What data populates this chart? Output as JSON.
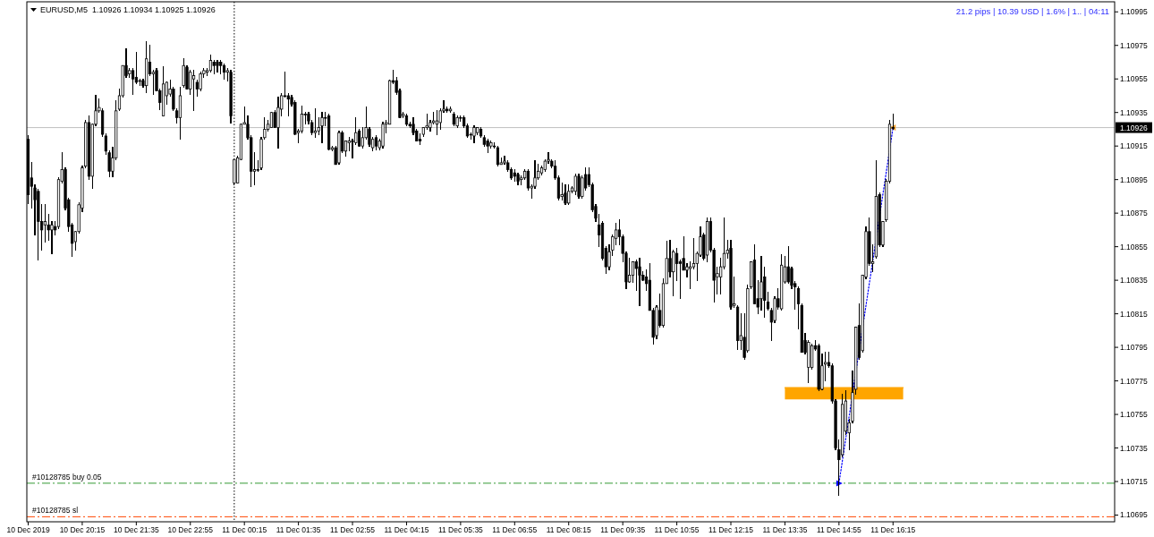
{
  "chart_data": {
    "type": "candlestick",
    "title": "EURUSD,M5  1.10926 1.10934 1.10925 1.10926",
    "annotations": [
      "21.2 pips | 10.39 USD | 1.6% | 1.. | 04:11"
    ],
    "xlim": [
      "2019-12-10T18:53",
      "2019-12-11T21:43"
    ],
    "xticks": [
      {
        "value": "2019-12-10T18:55",
        "label": "10 Dec 2019"
      },
      {
        "value": "2019-12-10T20:15",
        "label": "10 Dec 20:15"
      },
      {
        "value": "2019-12-10T21:35",
        "label": "10 Dec 21:35"
      },
      {
        "value": "2019-12-10T22:55",
        "label": "10 Dec 22:55"
      },
      {
        "value": "2019-12-11T00:15",
        "label": "11 Dec 00:15"
      },
      {
        "value": "2019-12-11T01:35",
        "label": "11 Dec 01:35"
      },
      {
        "value": "2019-12-11T02:55",
        "label": "11 Dec 02:55"
      },
      {
        "value": "2019-12-11T04:15",
        "label": "11 Dec 04:15"
      },
      {
        "value": "2019-12-11T05:35",
        "label": "11 Dec 05:35"
      },
      {
        "value": "2019-12-11T06:55",
        "label": "11 Dec 06:55"
      },
      {
        "value": "2019-12-11T08:15",
        "label": "11 Dec 08:15"
      },
      {
        "value": "2019-12-11T09:35",
        "label": "11 Dec 09:35"
      },
      {
        "value": "2019-12-11T10:55",
        "label": "11 Dec 10:55"
      },
      {
        "value": "2019-12-11T12:15",
        "label": "11 Dec 12:15"
      },
      {
        "value": "2019-12-11T13:35",
        "label": "11 Dec 13:35"
      },
      {
        "value": "2019-12-11T14:55",
        "label": "11 Dec 14:55"
      },
      {
        "value": "2019-12-11T16:15",
        "label": "11 Dec 16:15"
      }
    ],
    "ylim": [
      1.10691,
      1.11001
    ],
    "yticks": [
      1.10695,
      1.10715,
      1.10735,
      1.10755,
      1.10775,
      1.10795,
      1.10815,
      1.10835,
      1.10855,
      1.10875,
      1.10895,
      1.10915,
      1.10935,
      1.10955,
      1.10975,
      1.10995
    ],
    "ref_lines": [
      {
        "axis": "x",
        "value": "2019-12-11T00:00",
        "color": "#000000",
        "line_style": "dotted"
      },
      {
        "axis": "y",
        "value": 1.10926,
        "label": "1.10926",
        "color": "#c0c0c0",
        "line_style": "solid"
      },
      {
        "axis": "y",
        "value": 1.10714,
        "label": "#10128785 buy 0.05",
        "color": "#339933",
        "line_style": "dashed"
      },
      {
        "axis": "y",
        "value": 1.10694,
        "label": "#10128785 sl",
        "color": "#ff4500",
        "line_style": "dashed"
      }
    ],
    "series": [
      {
        "type": "line",
        "color": "#ffa500",
        "x": [
          "2019-12-11T13:35",
          "2019-12-11T16:30"
        ],
        "values": [
          1.10771,
          1.10771
        ],
        "lower": [
          1.10764,
          1.10764
        ],
        "upper": [
          1.10771,
          1.10771
        ]
      },
      {
        "color": "#000000",
        "x": [
          "2019-12-10T18:55",
          "2019-12-10T19:00",
          "2019-12-10T19:05",
          "2019-12-10T19:10",
          "2019-12-10T19:15",
          "2019-12-10T19:20",
          "2019-12-10T19:25",
          "2019-12-10T19:30",
          "2019-12-10T19:35",
          "2019-12-10T19:40",
          "2019-12-10T19:45",
          "2019-12-10T19:50",
          "2019-12-10T19:55",
          "2019-12-10T20:00",
          "2019-12-10T20:05",
          "2019-12-10T20:10",
          "2019-12-10T20:15",
          "2019-12-10T20:20",
          "2019-12-10T20:25",
          "2019-12-10T20:30",
          "2019-12-10T20:35",
          "2019-12-10T20:40",
          "2019-12-10T20:45",
          "2019-12-10T20:50",
          "2019-12-10T20:55",
          "2019-12-10T21:00",
          "2019-12-10T21:05",
          "2019-12-10T21:10",
          "2019-12-10T21:15",
          "2019-12-10T21:20",
          "2019-12-10T21:25",
          "2019-12-10T21:30",
          "2019-12-10T21:35",
          "2019-12-10T21:40",
          "2019-12-10T21:45",
          "2019-12-10T21:50",
          "2019-12-10T21:55",
          "2019-12-10T22:00",
          "2019-12-10T22:05",
          "2019-12-10T22:10",
          "2019-12-10T22:15",
          "2019-12-10T22:20",
          "2019-12-10T22:25",
          "2019-12-10T22:30",
          "2019-12-10T22:35",
          "2019-12-10T22:40",
          "2019-12-10T22:45",
          "2019-12-10T22:50",
          "2019-12-10T22:55",
          "2019-12-10T23:00",
          "2019-12-10T23:05",
          "2019-12-10T23:10",
          "2019-12-10T23:15",
          "2019-12-10T23:20",
          "2019-12-10T23:25",
          "2019-12-10T23:30",
          "2019-12-10T23:35",
          "2019-12-10T23:40",
          "2019-12-10T23:45",
          "2019-12-10T23:50",
          "2019-12-10T23:55",
          "2019-12-11T00:00",
          "2019-12-11T00:05",
          "2019-12-11T00:10",
          "2019-12-11T00:15",
          "2019-12-11T00:20",
          "2019-12-11T00:25",
          "2019-12-11T00:30",
          "2019-12-11T00:35",
          "2019-12-11T00:40",
          "2019-12-11T00:45",
          "2019-12-11T00:50",
          "2019-12-11T00:55",
          "2019-12-11T01:00",
          "2019-12-11T01:05",
          "2019-12-11T01:10",
          "2019-12-11T01:15",
          "2019-12-11T01:20",
          "2019-12-11T01:25",
          "2019-12-11T01:30",
          "2019-12-11T01:35",
          "2019-12-11T01:40",
          "2019-12-11T01:45",
          "2019-12-11T01:50",
          "2019-12-11T01:55",
          "2019-12-11T02:00",
          "2019-12-11T02:05",
          "2019-12-11T02:10",
          "2019-12-11T02:15",
          "2019-12-11T02:20",
          "2019-12-11T02:25",
          "2019-12-11T02:30",
          "2019-12-11T02:35",
          "2019-12-11T02:40",
          "2019-12-11T02:45",
          "2019-12-11T02:50",
          "2019-12-11T02:55",
          "2019-12-11T03:00",
          "2019-12-11T03:05",
          "2019-12-11T03:10",
          "2019-12-11T03:15",
          "2019-12-11T03:20",
          "2019-12-11T03:25",
          "2019-12-11T03:30",
          "2019-12-11T03:35",
          "2019-12-11T03:40",
          "2019-12-11T03:45",
          "2019-12-11T03:50",
          "2019-12-11T03:55",
          "2019-12-11T04:00",
          "2019-12-11T04:05",
          "2019-12-11T04:10",
          "2019-12-11T04:15",
          "2019-12-11T04:20",
          "2019-12-11T04:25",
          "2019-12-11T04:30",
          "2019-12-11T04:35",
          "2019-12-11T04:40",
          "2019-12-11T04:45",
          "2019-12-11T04:50",
          "2019-12-11T04:55",
          "2019-12-11T05:00",
          "2019-12-11T05:05",
          "2019-12-11T05:10",
          "2019-12-11T05:15",
          "2019-12-11T05:20",
          "2019-12-11T05:25",
          "2019-12-11T05:30",
          "2019-12-11T05:35",
          "2019-12-11T05:40",
          "2019-12-11T05:45",
          "2019-12-11T05:50",
          "2019-12-11T05:55",
          "2019-12-11T06:00",
          "2019-12-11T06:05",
          "2019-12-11T06:10",
          "2019-12-11T06:15",
          "2019-12-11T06:20",
          "2019-12-11T06:25",
          "2019-12-11T06:30",
          "2019-12-11T06:35",
          "2019-12-11T06:40",
          "2019-12-11T06:45",
          "2019-12-11T06:50",
          "2019-12-11T06:55",
          "2019-12-11T07:00",
          "2019-12-11T07:05",
          "2019-12-11T07:10",
          "2019-12-11T07:15",
          "2019-12-11T07:20",
          "2019-12-11T07:25",
          "2019-12-11T07:30",
          "2019-12-11T07:35",
          "2019-12-11T07:40",
          "2019-12-11T07:45",
          "2019-12-11T07:50",
          "2019-12-11T07:55",
          "2019-12-11T08:00",
          "2019-12-11T08:05",
          "2019-12-11T08:10",
          "2019-12-11T08:15",
          "2019-12-11T08:20",
          "2019-12-11T08:25",
          "2019-12-11T08:30",
          "2019-12-11T08:35",
          "2019-12-11T08:40",
          "2019-12-11T08:45",
          "2019-12-11T08:50",
          "2019-12-11T08:55",
          "2019-12-11T09:00",
          "2019-12-11T09:05",
          "2019-12-11T09:10",
          "2019-12-11T09:15",
          "2019-12-11T09:20",
          "2019-12-11T09:25",
          "2019-12-11T09:30",
          "2019-12-11T09:35",
          "2019-12-11T09:40",
          "2019-12-11T09:45",
          "2019-12-11T09:50",
          "2019-12-11T09:55",
          "2019-12-11T10:00",
          "2019-12-11T10:05",
          "2019-12-11T10:10",
          "2019-12-11T10:15",
          "2019-12-11T10:20",
          "2019-12-11T10:25",
          "2019-12-11T10:30",
          "2019-12-11T10:35",
          "2019-12-11T10:40",
          "2019-12-11T10:45",
          "2019-12-11T10:50",
          "2019-12-11T10:55",
          "2019-12-11T11:00",
          "2019-12-11T11:05",
          "2019-12-11T11:10",
          "2019-12-11T11:15",
          "2019-12-11T11:20",
          "2019-12-11T11:25",
          "2019-12-11T11:30",
          "2019-12-11T11:35",
          "2019-12-11T11:40",
          "2019-12-11T11:45",
          "2019-12-11T11:50",
          "2019-12-11T11:55",
          "2019-12-11T12:00",
          "2019-12-11T12:05",
          "2019-12-11T12:10",
          "2019-12-11T12:15",
          "2019-12-11T12:20",
          "2019-12-11T12:25",
          "2019-12-11T12:30",
          "2019-12-11T12:35",
          "2019-12-11T12:40",
          "2019-12-11T12:45",
          "2019-12-11T12:50",
          "2019-12-11T12:55",
          "2019-12-11T13:00",
          "2019-12-11T13:05",
          "2019-12-11T13:10",
          "2019-12-11T13:15",
          "2019-12-11T13:20",
          "2019-12-11T13:25",
          "2019-12-11T13:30",
          "2019-12-11T13:35",
          "2019-12-11T13:40",
          "2019-12-11T13:45",
          "2019-12-11T13:50",
          "2019-12-11T13:55",
          "2019-12-11T14:00",
          "2019-12-11T14:05",
          "2019-12-11T14:10",
          "2019-12-11T14:15",
          "2019-12-11T14:20",
          "2019-12-11T14:25",
          "2019-12-11T14:30",
          "2019-12-11T14:35",
          "2019-12-11T14:40",
          "2019-12-11T14:45",
          "2019-12-11T14:50",
          "2019-12-11T14:55",
          "2019-12-11T15:00",
          "2019-12-11T15:05",
          "2019-12-11T15:10",
          "2019-12-11T15:15",
          "2019-12-11T15:20",
          "2019-12-11T15:25",
          "2019-12-11T15:30",
          "2019-12-11T15:35",
          "2019-12-11T15:40",
          "2019-12-11T15:45",
          "2019-12-11T15:50",
          "2019-12-11T15:55",
          "2019-12-11T16:00",
          "2019-12-11T16:05",
          "2019-12-11T16:10",
          "2019-12-11T16:15"
        ],
        "ohlc": [
          [
            1.10919,
            1.10921,
            1.10881,
            1.10886
          ],
          [
            1.10896,
            1.10905,
            1.10878,
            1.10891
          ],
          [
            1.1089,
            1.10892,
            1.10862,
            1.10883
          ],
          [
            1.10888,
            1.10889,
            1.10847,
            1.1087
          ],
          [
            1.1087,
            1.1088,
            1.10853,
            1.10865
          ],
          [
            1.10868,
            1.1088,
            1.10858,
            1.1087
          ],
          [
            1.10868,
            1.10874,
            1.10859,
            1.10865
          ],
          [
            1.10865,
            1.1087,
            1.10851,
            1.10868
          ],
          [
            1.10867,
            1.1087,
            1.10862,
            1.10865
          ],
          [
            1.10867,
            1.10896,
            1.10866,
            1.10895
          ],
          [
            1.10894,
            1.10911,
            1.10893,
            1.10901
          ],
          [
            1.10901,
            1.10902,
            1.10877,
            1.10878
          ],
          [
            1.10883,
            1.10884,
            1.10864,
            1.10867
          ],
          [
            1.10868,
            1.10869,
            1.10849,
            1.10857
          ],
          [
            1.10858,
            1.10864,
            1.10853,
            1.10864
          ],
          [
            1.10864,
            1.10881,
            1.10863,
            1.1088
          ],
          [
            1.10878,
            1.10903,
            1.10876,
            1.10902
          ],
          [
            1.10903,
            1.1093,
            1.10902,
            1.10929
          ],
          [
            1.10929,
            1.10933,
            1.10895,
            1.10897
          ],
          [
            1.10897,
            1.10928,
            1.1089,
            1.10928
          ],
          [
            1.10928,
            1.10945,
            1.10927,
            1.10936
          ],
          [
            1.10936,
            1.10943,
            1.10935,
            1.10938
          ],
          [
            1.10936,
            1.10937,
            1.10921,
            1.10922
          ],
          [
            1.10921,
            1.10922,
            1.1091,
            1.10912
          ],
          [
            1.10911,
            1.10912,
            1.10897,
            1.109
          ],
          [
            1.109,
            1.10914,
            1.10897,
            1.10908
          ],
          [
            1.10908,
            1.10942,
            1.10907,
            1.10936
          ],
          [
            1.10937,
            1.10949,
            1.10936,
            1.10945
          ],
          [
            1.10945,
            1.10963,
            1.10944,
            1.10963
          ],
          [
            1.10963,
            1.10973,
            1.10956,
            1.10957
          ],
          [
            1.10958,
            1.10961,
            1.10956,
            1.1096
          ],
          [
            1.1096,
            1.10961,
            1.10946,
            1.10955
          ],
          [
            1.10956,
            1.10971,
            1.10952,
            1.10953
          ],
          [
            1.10954,
            1.10955,
            1.10951,
            1.10954
          ],
          [
            1.10954,
            1.10955,
            1.1095,
            1.10951
          ],
          [
            1.10951,
            1.10977,
            1.10947,
            1.10967
          ],
          [
            1.10965,
            1.10975,
            1.10957,
            1.10958
          ],
          [
            1.10958,
            1.1096,
            1.10946,
            1.10959
          ],
          [
            1.1096,
            1.10961,
            1.10948,
            1.10948
          ],
          [
            1.10948,
            1.10949,
            1.10937,
            1.10941
          ],
          [
            1.10933,
            1.10962,
            1.10933,
            1.10952
          ],
          [
            1.10945,
            1.10953,
            1.1094,
            1.10953
          ],
          [
            1.10946,
            1.10954,
            1.10945,
            1.10949
          ],
          [
            1.10949,
            1.1095,
            1.10936,
            1.10937
          ],
          [
            1.10936,
            1.10937,
            1.10929,
            1.10932
          ],
          [
            1.10932,
            1.1095,
            1.10919,
            1.10945
          ],
          [
            1.10951,
            1.10967,
            1.1095,
            1.10963
          ],
          [
            1.10962,
            1.10963,
            1.10949,
            1.10949
          ],
          [
            1.10949,
            1.1096,
            1.10946,
            1.10959
          ],
          [
            1.10955,
            1.1096,
            1.10936,
            1.10957
          ],
          [
            1.10953,
            1.10954,
            1.10945,
            1.10949
          ],
          [
            1.10949,
            1.10959,
            1.10948,
            1.10958
          ],
          [
            1.10958,
            1.10961,
            1.10956,
            1.1096
          ],
          [
            1.10959,
            1.10961,
            1.10957,
            1.1096
          ],
          [
            1.1096,
            1.10969,
            1.10959,
            1.10966
          ],
          [
            1.10965,
            1.10966,
            1.10958,
            1.10963
          ],
          [
            1.10965,
            1.10966,
            1.10959,
            1.10963
          ],
          [
            1.10965,
            1.10966,
            1.10958,
            1.10963
          ],
          [
            1.10963,
            1.10964,
            1.10955,
            1.10959
          ],
          [
            1.10959,
            1.10961,
            1.10954,
            1.1096
          ],
          [
            1.10959,
            1.1096,
            1.10929,
            1.10933
          ],
          [
            1.10893,
            1.10907,
            1.10892,
            1.10907
          ],
          [
            1.10893,
            1.10909,
            1.10893,
            1.10908
          ],
          [
            1.10907,
            1.10928,
            1.10907,
            1.10928
          ],
          [
            1.10928,
            1.10938,
            1.10928,
            1.10929
          ],
          [
            1.10928,
            1.10933,
            1.10919,
            1.1092
          ],
          [
            1.1092,
            1.10921,
            1.10891,
            1.109
          ],
          [
            1.109,
            1.10911,
            1.10892,
            1.10901
          ],
          [
            1.10901,
            1.10906,
            1.109,
            1.10901
          ],
          [
            1.10902,
            1.1092,
            1.10901,
            1.10919
          ],
          [
            1.1092,
            1.10932,
            1.10919,
            1.10925
          ],
          [
            1.10925,
            1.1093,
            1.10924,
            1.10928
          ],
          [
            1.10926,
            1.10935,
            1.10926,
            1.10935
          ],
          [
            1.10935,
            1.10936,
            1.10926,
            1.10926
          ],
          [
            1.10926,
            1.10944,
            1.10914,
            1.10938
          ],
          [
            1.10937,
            1.10946,
            1.10933,
            1.10945
          ],
          [
            1.10945,
            1.10959,
            1.10944,
            1.10945
          ],
          [
            1.10945,
            1.10946,
            1.10933,
            1.10943
          ],
          [
            1.10944,
            1.10945,
            1.10939,
            1.1094
          ],
          [
            1.10941,
            1.10942,
            1.10922,
            1.10922
          ],
          [
            1.10923,
            1.10925,
            1.10917,
            1.10924
          ],
          [
            1.10924,
            1.10939,
            1.10923,
            1.10934
          ],
          [
            1.10934,
            1.10935,
            1.10928,
            1.10934
          ],
          [
            1.10934,
            1.10935,
            1.10928,
            1.1093
          ],
          [
            1.10929,
            1.1093,
            1.10922,
            1.10923
          ],
          [
            1.10923,
            1.10937,
            1.1092,
            1.10924
          ],
          [
            1.10924,
            1.10932,
            1.10922,
            1.10926
          ],
          [
            1.10927,
            1.10935,
            1.10917,
            1.10932
          ],
          [
            1.10932,
            1.10935,
            1.10927,
            1.10932
          ],
          [
            1.10933,
            1.10934,
            1.10913,
            1.10913
          ],
          [
            1.10913,
            1.10915,
            1.10912,
            1.10914
          ],
          [
            1.10914,
            1.10915,
            1.10904,
            1.10904
          ],
          [
            1.10905,
            1.10924,
            1.10904,
            1.10923
          ],
          [
            1.10923,
            1.10924,
            1.10911,
            1.10912
          ],
          [
            1.10912,
            1.10918,
            1.10909,
            1.10918
          ],
          [
            1.10917,
            1.1092,
            1.10912,
            1.10918
          ],
          [
            1.10918,
            1.10919,
            1.10908,
            1.10918
          ],
          [
            1.10917,
            1.10932,
            1.10916,
            1.10923
          ],
          [
            1.10924,
            1.10925,
            1.10915,
            1.10915
          ],
          [
            1.10915,
            1.10926,
            1.10914,
            1.1092
          ],
          [
            1.1092,
            1.10938,
            1.10919,
            1.10926
          ],
          [
            1.10925,
            1.10926,
            1.10915,
            1.10916
          ],
          [
            1.10914,
            1.1092,
            1.10912,
            1.10919
          ],
          [
            1.1092,
            1.10921,
            1.10913,
            1.10915
          ],
          [
            1.10914,
            1.10919,
            1.10913,
            1.10918
          ],
          [
            1.10915,
            1.10929,
            1.10914,
            1.10928
          ],
          [
            1.10928,
            1.1093,
            1.10923,
            1.10929
          ],
          [
            1.10928,
            1.10954,
            1.10928,
            1.10954
          ],
          [
            1.10954,
            1.1096,
            1.10952,
            1.10953
          ],
          [
            1.10954,
            1.10956,
            1.10946,
            1.10947
          ],
          [
            1.10948,
            1.10949,
            1.10932,
            1.10932
          ],
          [
            1.10933,
            1.10935,
            1.10932,
            1.10934
          ],
          [
            1.10933,
            1.10934,
            1.10927,
            1.10928
          ],
          [
            1.10928,
            1.10929,
            1.10926,
            1.10927
          ],
          [
            1.10928,
            1.10932,
            1.10922,
            1.10923
          ],
          [
            1.10924,
            1.10925,
            1.10918,
            1.10918
          ],
          [
            1.10919,
            1.10922,
            1.10916,
            1.10918
          ],
          [
            1.10922,
            1.10926,
            1.10921,
            1.10926
          ],
          [
            1.10926,
            1.10934,
            1.10925,
            1.10927
          ],
          [
            1.10926,
            1.1093,
            1.10924,
            1.10929
          ],
          [
            1.10929,
            1.10935,
            1.10928,
            1.1093
          ],
          [
            1.10928,
            1.10936,
            1.10922,
            1.1093
          ],
          [
            1.10929,
            1.10937,
            1.10925,
            1.10936
          ],
          [
            1.10936,
            1.10942,
            1.10935,
            1.10937
          ],
          [
            1.10937,
            1.10938,
            1.10935,
            1.10936
          ],
          [
            1.10936,
            1.10938,
            1.10935,
            1.10937
          ],
          [
            1.10934,
            1.10935,
            1.10927,
            1.10928
          ],
          [
            1.10927,
            1.10933,
            1.10926,
            1.10932
          ],
          [
            1.10932,
            1.10933,
            1.1093,
            1.10932
          ],
          [
            1.10932,
            1.10933,
            1.10926,
            1.10927
          ],
          [
            1.10927,
            1.10928,
            1.1092,
            1.10921
          ],
          [
            1.10922,
            1.10923,
            1.10919,
            1.10922
          ],
          [
            1.10921,
            1.10927,
            1.10917,
            1.10926
          ],
          [
            1.10923,
            1.10926,
            1.10922,
            1.10926
          ],
          [
            1.10925,
            1.10926,
            1.1092,
            1.10921
          ],
          [
            1.1092,
            1.10921,
            1.10915,
            1.10916
          ],
          [
            1.10918,
            1.10919,
            1.10911,
            1.10915
          ],
          [
            1.10915,
            1.10918,
            1.10914,
            1.10917
          ],
          [
            1.10915,
            1.10917,
            1.10914,
            1.10915
          ],
          [
            1.10914,
            1.10915,
            1.10903,
            1.10904
          ],
          [
            1.10904,
            1.10908,
            1.10904,
            1.10905
          ],
          [
            1.10905,
            1.10909,
            1.10904,
            1.10906
          ],
          [
            1.10905,
            1.10906,
            1.109,
            1.10901
          ],
          [
            1.10901,
            1.10902,
            1.10895,
            1.10896
          ],
          [
            1.10899,
            1.10901,
            1.10894,
            1.10897
          ],
          [
            1.10898,
            1.10899,
            1.10892,
            1.10894
          ],
          [
            1.10895,
            1.10897,
            1.10892,
            1.10896
          ],
          [
            1.10896,
            1.10901,
            1.10895,
            1.109
          ],
          [
            1.109,
            1.10901,
            1.10889,
            1.1089
          ],
          [
            1.1089,
            1.10892,
            1.10884,
            1.10891
          ],
          [
            1.10891,
            1.10906,
            1.1089,
            1.10896
          ],
          [
            1.10896,
            1.10904,
            1.10895,
            1.109
          ],
          [
            1.10899,
            1.10903,
            1.10898,
            1.10902
          ],
          [
            1.10901,
            1.10907,
            1.109,
            1.10906
          ],
          [
            1.10906,
            1.10911,
            1.10905,
            1.10907
          ],
          [
            1.10906,
            1.10907,
            1.10902,
            1.10903
          ],
          [
            1.10903,
            1.10906,
            1.10895,
            1.10896
          ],
          [
            1.10896,
            1.10897,
            1.10883,
            1.10884
          ],
          [
            1.10885,
            1.10893,
            1.10883,
            1.10886
          ],
          [
            1.10887,
            1.10892,
            1.1088,
            1.10881
          ],
          [
            1.10881,
            1.10892,
            1.1088,
            1.10888
          ],
          [
            1.10888,
            1.10891,
            1.10887,
            1.1089
          ],
          [
            1.10888,
            1.10898,
            1.10886,
            1.10897
          ],
          [
            1.10897,
            1.10898,
            1.10884,
            1.10885
          ],
          [
            1.10885,
            1.10897,
            1.10884,
            1.10896
          ],
          [
            1.10898,
            1.10902,
            1.10889,
            1.1089
          ],
          [
            1.10898,
            1.10902,
            1.10891,
            1.10892
          ],
          [
            1.10892,
            1.10893,
            1.10876,
            1.10877
          ],
          [
            1.10879,
            1.1088,
            1.1087,
            1.10872
          ],
          [
            1.10868,
            1.10874,
            1.10855,
            1.10862
          ],
          [
            1.10869,
            1.1087,
            1.10847,
            1.10848
          ],
          [
            1.10854,
            1.10855,
            1.10839,
            1.10843
          ],
          [
            1.10843,
            1.10856,
            1.10841,
            1.10852
          ],
          [
            1.10853,
            1.10862,
            1.1085,
            1.10861
          ],
          [
            1.1086,
            1.10869,
            1.10856,
            1.10865
          ],
          [
            1.10865,
            1.10871,
            1.10856,
            1.10861
          ],
          [
            1.10861,
            1.10862,
            1.10846,
            1.10851
          ],
          [
            1.10851,
            1.10852,
            1.1083,
            1.10834
          ],
          [
            1.10834,
            1.10848,
            1.10834,
            1.10838
          ],
          [
            1.10838,
            1.10846,
            1.10834,
            1.10846
          ],
          [
            1.10846,
            1.10847,
            1.10829,
            1.10842
          ],
          [
            1.10843,
            1.10848,
            1.1082,
            1.10838
          ],
          [
            1.10838,
            1.1084,
            1.10835,
            1.10835
          ],
          [
            1.10837,
            1.10841,
            1.10829,
            1.10833
          ],
          [
            1.10835,
            1.10845,
            1.10817,
            1.10817
          ],
          [
            1.10817,
            1.10818,
            1.10797,
            1.10801
          ],
          [
            1.10802,
            1.1082,
            1.108,
            1.10819
          ],
          [
            1.10817,
            1.10827,
            1.10807,
            1.10808
          ],
          [
            1.10808,
            1.10836,
            1.10807,
            1.10833
          ],
          [
            1.10833,
            1.10858,
            1.10833,
            1.10848
          ],
          [
            1.10848,
            1.10859,
            1.10837,
            1.1084
          ],
          [
            1.1084,
            1.10853,
            1.10826,
            1.10852
          ],
          [
            1.10851,
            1.10854,
            1.10835,
            1.10845
          ],
          [
            1.10846,
            1.10847,
            1.10824,
            1.10845
          ],
          [
            1.10848,
            1.10861,
            1.10841,
            1.10841
          ],
          [
            1.10841,
            1.10845,
            1.10837,
            1.10843
          ],
          [
            1.10842,
            1.10846,
            1.1083,
            1.10843
          ],
          [
            1.10843,
            1.1086,
            1.10842,
            1.10845
          ],
          [
            1.10845,
            1.10852,
            1.10835,
            1.10851
          ],
          [
            1.1085,
            1.10867,
            1.10849,
            1.10861
          ],
          [
            1.10862,
            1.10863,
            1.10847,
            1.10848
          ],
          [
            1.1085,
            1.10872,
            1.10846,
            1.1087
          ],
          [
            1.1087,
            1.10872,
            1.10852,
            1.10853
          ],
          [
            1.10853,
            1.10854,
            1.10822,
            1.10835
          ],
          [
            1.10837,
            1.10843,
            1.10827,
            1.10839
          ],
          [
            1.10837,
            1.10848,
            1.10827,
            1.10843
          ],
          [
            1.10843,
            1.10872,
            1.10842,
            1.10851
          ],
          [
            1.10851,
            1.10859,
            1.10848,
            1.10853
          ],
          [
            1.10854,
            1.10859,
            1.10818,
            1.10819
          ],
          [
            1.1082,
            1.10837,
            1.10819,
            1.10821
          ],
          [
            1.10819,
            1.1082,
            1.10794,
            1.10799
          ],
          [
            1.10799,
            1.10815,
            1.10794,
            1.10802
          ],
          [
            1.10801,
            1.10815,
            1.10788,
            1.10789
          ],
          [
            1.10793,
            1.10832,
            1.10792,
            1.1083
          ],
          [
            1.10831,
            1.10846,
            1.1083,
            1.10846
          ],
          [
            1.10847,
            1.10856,
            1.10821,
            1.10821
          ],
          [
            1.10824,
            1.10835,
            1.10815,
            1.10819
          ],
          [
            1.10824,
            1.10849,
            1.10817,
            1.10834
          ],
          [
            1.10837,
            1.10843,
            1.10813,
            1.10823
          ],
          [
            1.10822,
            1.10828,
            1.10817,
            1.10818
          ],
          [
            1.10817,
            1.10818,
            1.10799,
            1.1081
          ],
          [
            1.10811,
            1.10825,
            1.1081,
            1.10824
          ],
          [
            1.10824,
            1.1083,
            1.10818,
            1.10819
          ],
          [
            1.10818,
            1.1085,
            1.10817,
            1.10844
          ],
          [
            1.10834,
            1.10849,
            1.10833,
            1.10843
          ],
          [
            1.10843,
            1.10855,
            1.10833,
            1.10834
          ],
          [
            1.10842,
            1.10843,
            1.1083,
            1.10832
          ],
          [
            1.10833,
            1.10834,
            1.10818,
            1.10831
          ],
          [
            1.1083,
            1.10831,
            1.10806,
            1.10821
          ],
          [
            1.1082,
            1.10821,
            1.10792,
            1.10792
          ],
          [
            1.10799,
            1.10803,
            1.10791,
            1.10792
          ],
          [
            1.10783,
            1.10799,
            1.10774,
            1.10798
          ],
          [
            1.10783,
            1.10797,
            1.10782,
            1.10796
          ],
          [
            1.10796,
            1.10799,
            1.10793,
            1.10794
          ],
          [
            1.10796,
            1.10797,
            1.10769,
            1.1077
          ],
          [
            1.1077,
            1.10791,
            1.1077,
            1.10784
          ],
          [
            1.10785,
            1.10792,
            1.10775,
            1.10786
          ],
          [
            1.10786,
            1.10792,
            1.10783,
            1.10784
          ],
          [
            1.10784,
            1.10785,
            1.10762,
            1.10763
          ],
          [
            1.10763,
            1.10764,
            1.10734,
            1.10735
          ],
          [
            1.10734,
            1.1074,
            1.10707,
            1.10728
          ],
          [
            1.10731,
            1.10767,
            1.1073,
            1.10761
          ],
          [
            1.10745,
            1.10769,
            1.10743,
            1.10763
          ],
          [
            1.10744,
            1.10752,
            1.10734,
            1.1075
          ],
          [
            1.10751,
            1.10781,
            1.1075,
            1.10768
          ],
          [
            1.1077,
            1.10807,
            1.10767,
            1.10807
          ],
          [
            1.10808,
            1.10821,
            1.10788,
            1.10789
          ],
          [
            1.10793,
            1.10838,
            1.10792,
            1.10838
          ],
          [
            1.10837,
            1.10867,
            1.10836,
            1.10864
          ],
          [
            1.10864,
            1.10872,
            1.10844,
            1.10845
          ],
          [
            1.10845,
            1.10856,
            1.1084,
            1.10846
          ],
          [
            1.10849,
            1.10906,
            1.10848,
            1.10885
          ],
          [
            1.10886,
            1.10887,
            1.10855,
            1.10856
          ],
          [
            1.10856,
            1.1087,
            1.10855,
            1.1087
          ],
          [
            1.10871,
            1.10895,
            1.1087,
            1.10894
          ],
          [
            1.10894,
            1.1093,
            1.10893,
            1.10928
          ],
          [
            1.10926,
            1.10934,
            1.10925,
            1.10926
          ]
        ]
      },
      {
        "type": "line",
        "color": "#0000ff",
        "colors": [
          "#0000ff",
          "#f0a030"
        ],
        "line_style": "dotted",
        "marker": "triangle",
        "x": [
          "2019-12-11T14:55",
          "2019-12-11T16:15"
        ],
        "values": [
          1.10714,
          1.10926
        ]
      }
    ]
  }
}
